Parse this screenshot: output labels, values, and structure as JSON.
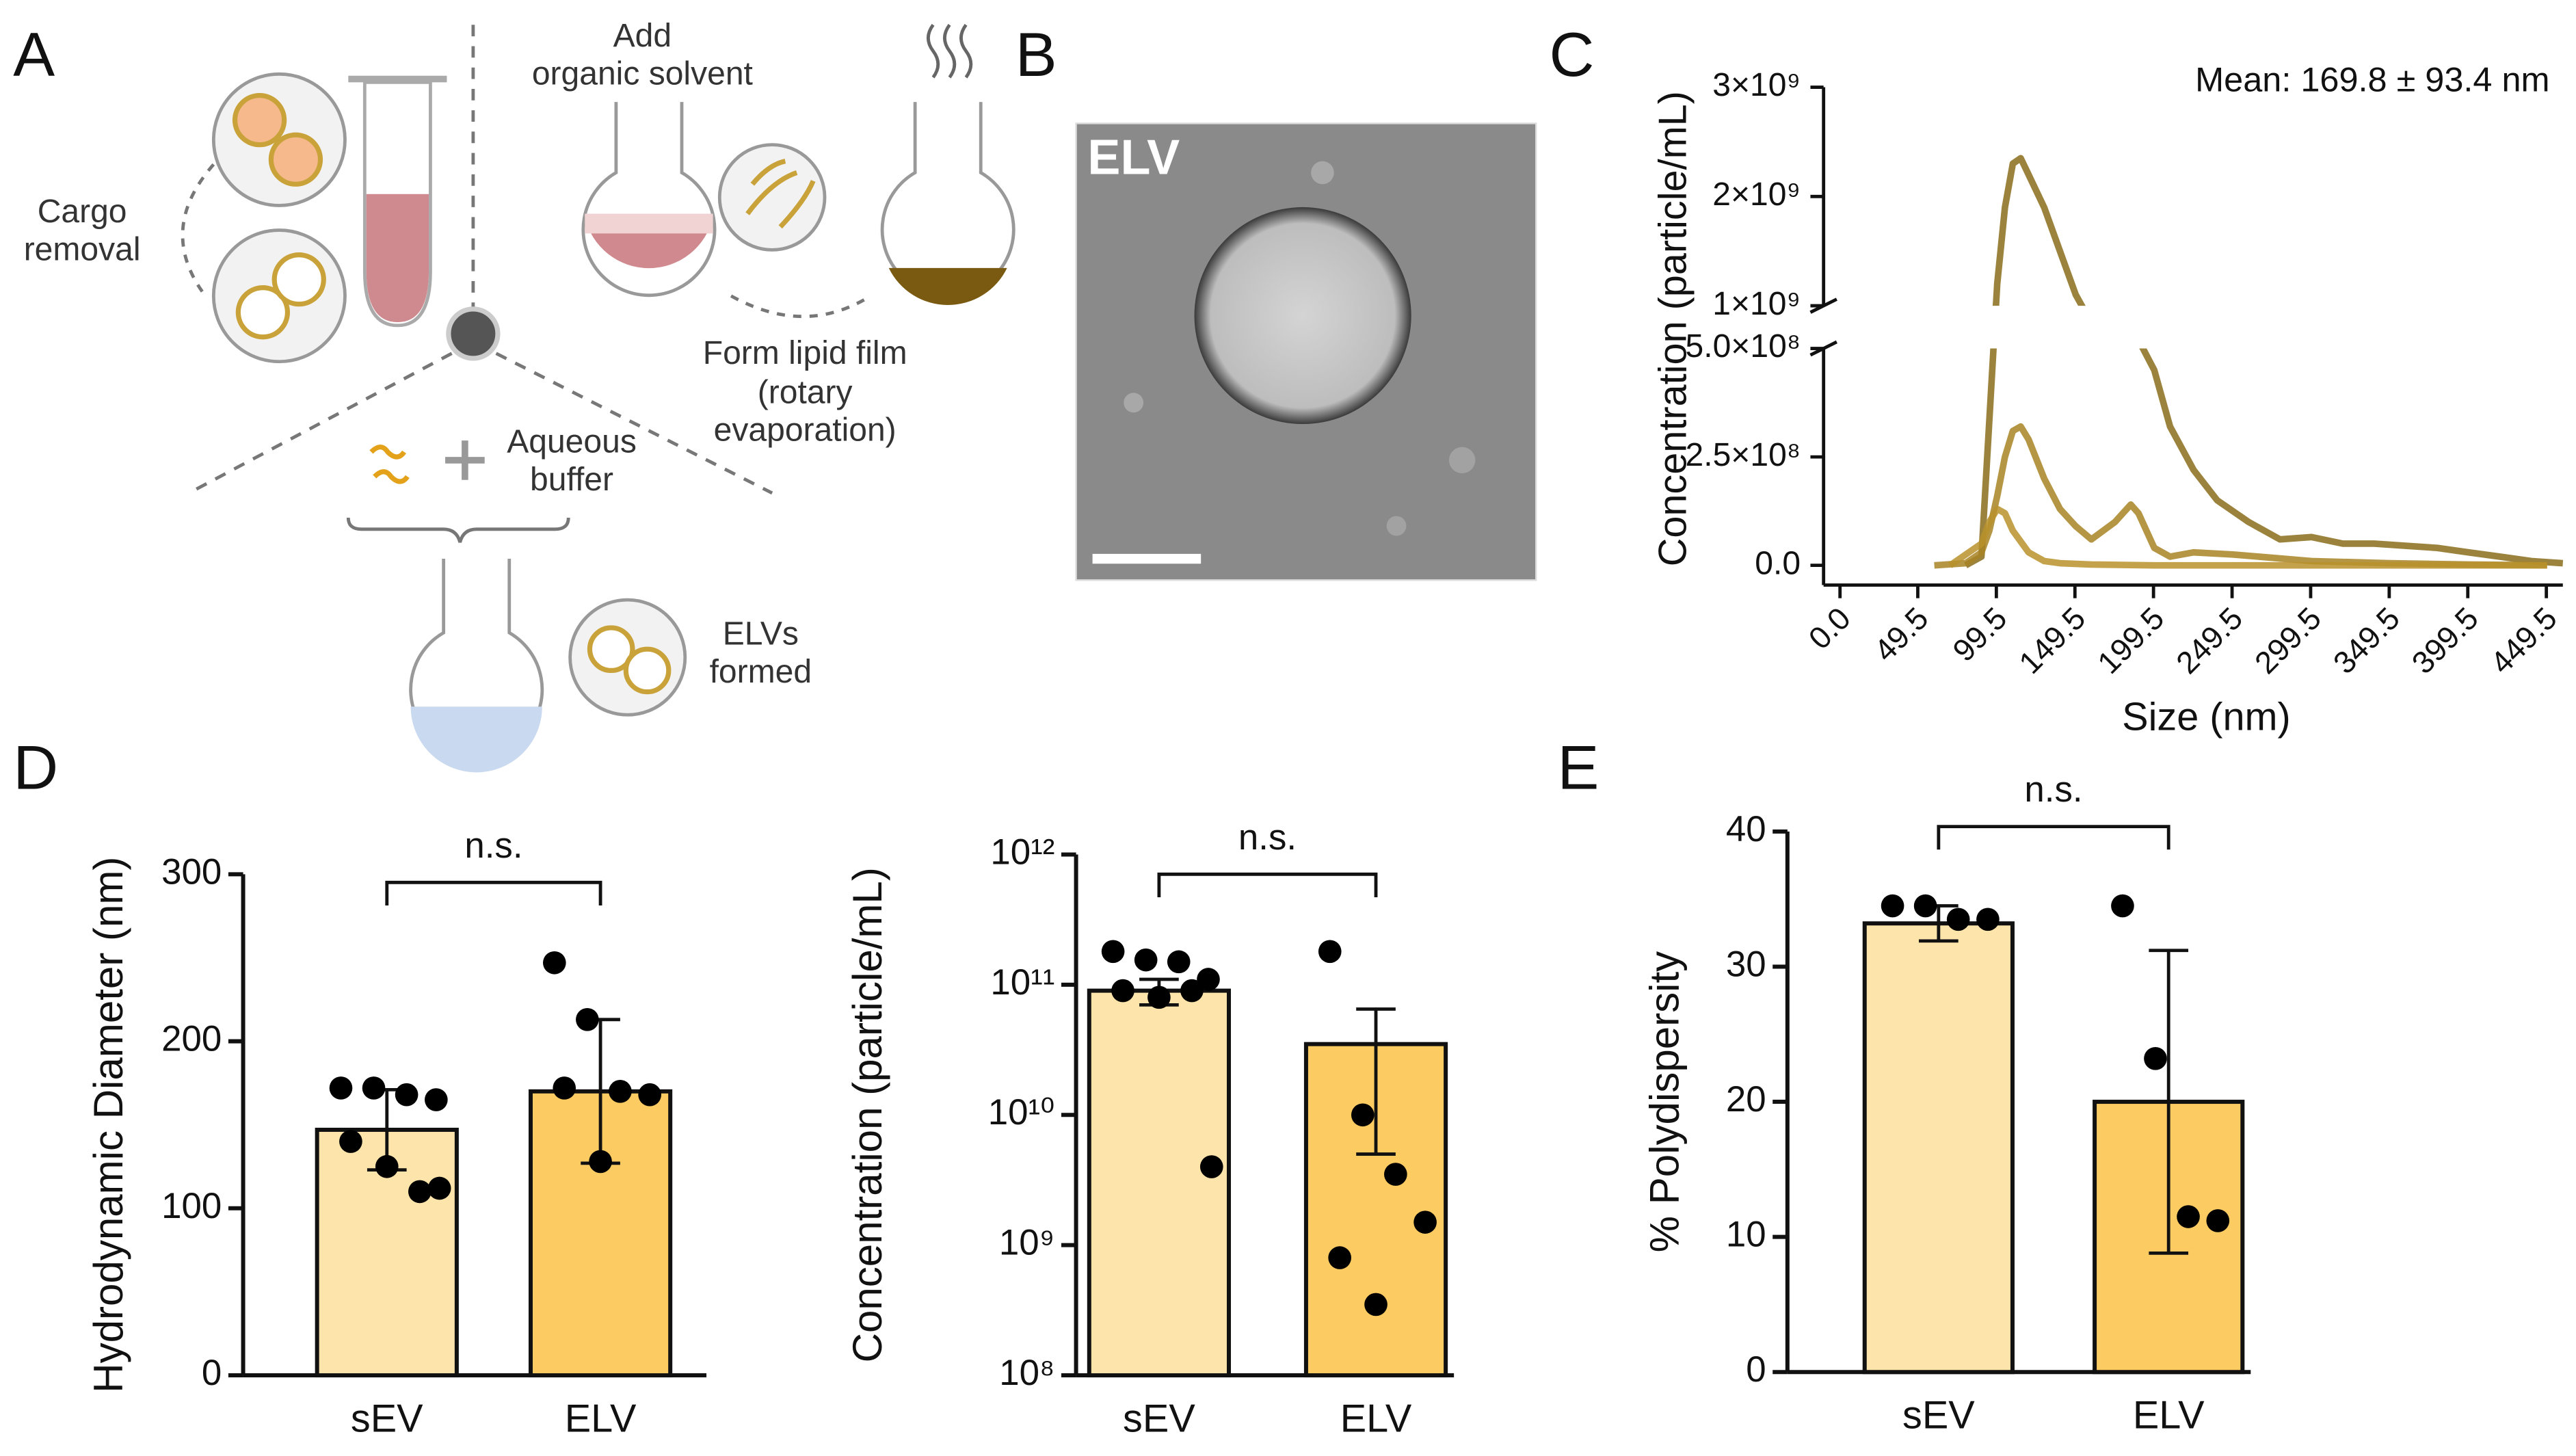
{
  "panel_labels": [
    "A",
    "B",
    "C",
    "D",
    "E"
  ],
  "diagram": {
    "add_solvent": [
      "Add",
      "organic solvent"
    ],
    "cargo_removal": [
      "Cargo",
      "removal"
    ],
    "lipid_film": [
      "Form lipid film",
      "(rotary",
      "evaporation)"
    ],
    "aqueous_buffer": [
      "Aqueous",
      "buffer"
    ],
    "elvs_formed": [
      "ELVs",
      "formed"
    ]
  },
  "micrograph": {
    "label": "ELV"
  },
  "chart_data": [
    {
      "type": "line",
      "title": "Mean: 169.8 ± 93.4 nm",
      "x_label": "Size (nm)",
      "y_label": "Concentration (particle/mL)",
      "xlim": [
        0,
        460
      ],
      "xticks": [
        {
          "value": 0,
          "label": "0.0"
        },
        49.5,
        99.5,
        149.5,
        199.5,
        249.5,
        299.5,
        349.5,
        399.5,
        449.5
      ],
      "ylim": [
        0,
        3000000000
      ],
      "y_break": [
        500000000,
        1000000000
      ],
      "yticks": [
        {
          "value": 0,
          "label": "0.0"
        },
        {
          "value": 250000000,
          "label": "2.5×10⁸"
        },
        {
          "value": 500000000,
          "label": "5.0×10⁸"
        },
        {
          "value": 1000000000,
          "label": "1×10⁹"
        },
        {
          "value": 2000000000,
          "label": "2×10⁹"
        },
        {
          "value": 3000000000,
          "label": "3×10⁹"
        }
      ],
      "series": [
        {
          "color": "#8a6d1c",
          "x": [
            80,
            90,
            100,
            105,
            110,
            115,
            120,
            130,
            140,
            150,
            160,
            175,
            190,
            200,
            210,
            225,
            240,
            260,
            280,
            300,
            320,
            340,
            360,
            380,
            400,
            420,
            440,
            460
          ],
          "values": [
            0,
            20000000,
            1200000000,
            1900000000,
            2300000000,
            2350000000,
            2200000000,
            1900000000,
            1500000000,
            1100000000,
            800000000,
            700000000,
            600000000,
            450000000,
            320000000,
            220000000,
            150000000,
            100000000,
            60000000,
            65000000,
            50000000,
            50000000,
            45000000,
            40000000,
            30000000,
            20000000,
            10000000,
            5000000
          ]
        },
        {
          "color": "#a88424",
          "x": [
            60,
            80,
            90,
            95,
            100,
            105,
            110,
            115,
            120,
            130,
            140,
            150,
            160,
            175,
            185,
            190,
            200,
            210,
            225,
            250,
            300,
            350,
            400,
            450
          ],
          "values": [
            0,
            5000000,
            30000000,
            80000000,
            160000000,
            250000000,
            310000000,
            320000000,
            290000000,
            200000000,
            130000000,
            90000000,
            60000000,
            100000000,
            140000000,
            120000000,
            40000000,
            20000000,
            30000000,
            25000000,
            10000000,
            5000000,
            2000000,
            0
          ]
        },
        {
          "color": "#b8922c",
          "x": [
            70,
            90,
            95,
            100,
            105,
            110,
            120,
            130,
            140,
            160,
            200,
            250,
            300,
            450
          ],
          "values": [
            0,
            50000000,
            100000000,
            130000000,
            120000000,
            80000000,
            30000000,
            10000000,
            5000000,
            2000000,
            0,
            0,
            0,
            0
          ]
        }
      ]
    },
    {
      "type": "bar",
      "y_label": "Hydrodynamic Diameter (nm)",
      "categories": [
        "sEV",
        "ELV"
      ],
      "values": [
        147,
        170
      ],
      "errors": [
        24,
        43
      ],
      "points": [
        [
          172,
          172,
          168,
          165,
          140,
          125,
          110,
          112
        ],
        [
          247,
          213,
          170,
          168,
          172,
          128
        ]
      ],
      "colors": [
        "#fde4aa",
        "#fccb62"
      ],
      "ylim": [
        0,
        300
      ],
      "yticks": [
        0,
        100,
        200,
        300
      ],
      "annotation": "n.s."
    },
    {
      "type": "bar",
      "log_scale": true,
      "y_label": "Concentration (particle/mL)",
      "categories": [
        "sEV",
        "ELV"
      ],
      "values": [
        90000000000,
        35000000000
      ],
      "errors": [
        20000000000,
        30000000000
      ],
      "points": [
        [
          180000000000,
          155000000000,
          150000000000,
          110000000000,
          90000000000,
          80000000000,
          90000000000,
          4000000000
        ],
        [
          180000000000,
          10000000000,
          3500000000,
          1500000000,
          800000000,
          350000000
        ]
      ],
      "colors": [
        "#fde4aa",
        "#fccb62"
      ],
      "ylim": [
        100000000,
        1000000000000
      ],
      "yticks": [
        {
          "value": 100000000,
          "label": "10⁸"
        },
        {
          "value": 1000000000,
          "label": "10⁹"
        },
        {
          "value": 10000000000,
          "label": "10¹⁰"
        },
        {
          "value": 100000000000,
          "label": "10¹¹"
        },
        {
          "value": 1000000000000,
          "label": "10¹²"
        }
      ],
      "annotation": "n.s."
    },
    {
      "type": "bar",
      "y_label": "% Polydispersity",
      "categories": [
        "sEV",
        "ELV"
      ],
      "values": [
        33.2,
        20
      ],
      "errors": [
        1.3,
        11.2
      ],
      "points": [
        [
          34.5,
          34.5,
          33.5,
          33.5
        ],
        [
          34.5,
          23.2,
          11.5,
          11.2
        ]
      ],
      "colors": [
        "#fde4aa",
        "#fccb62"
      ],
      "ylim": [
        0,
        40
      ],
      "yticks": [
        0,
        10,
        20,
        30,
        40
      ],
      "annotation": "n.s."
    }
  ]
}
